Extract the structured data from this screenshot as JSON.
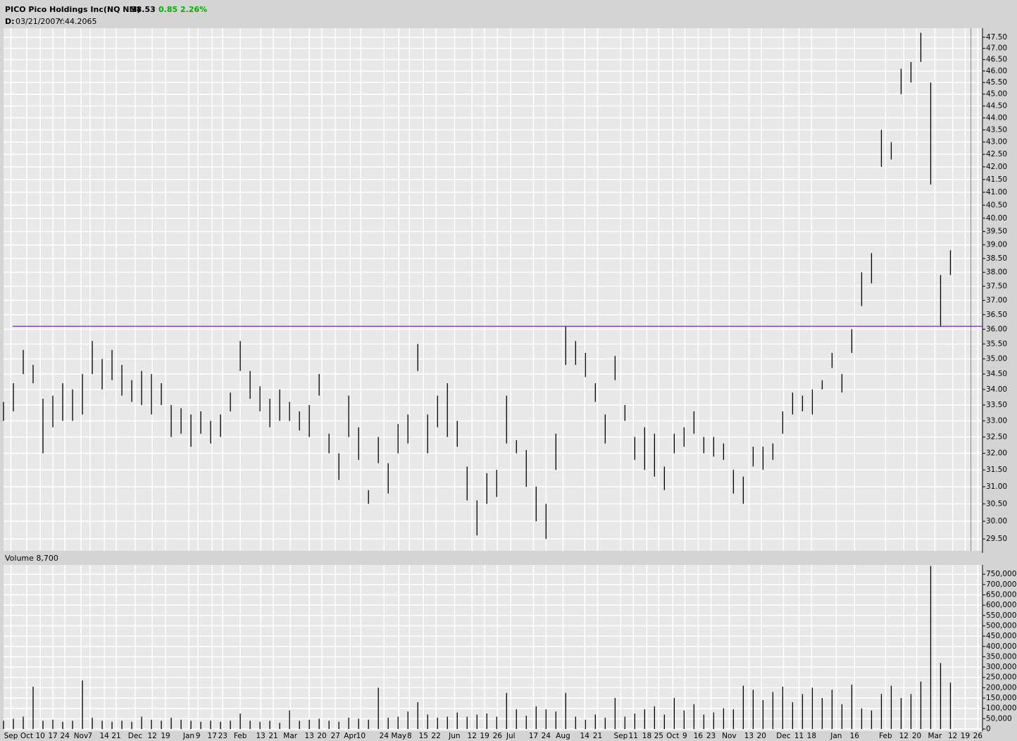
{
  "header": {
    "symbol": "PICO Pico Holdings Inc(NQ NM)",
    "last": "38.53",
    "change": "0.85",
    "change_pct": "2.26%",
    "d_label": "D:",
    "date": "03/21/2007",
    "y_readout": "Y:44.2065"
  },
  "chart_data": [
    {
      "type": "ohlc",
      "color": "#000000",
      "log": true,
      "grid": true,
      "x": [
        0,
        4,
        8,
        12,
        16,
        20,
        24,
        28,
        32,
        36,
        40,
        44,
        48,
        52,
        56,
        60,
        64,
        68,
        72,
        76,
        80,
        84,
        88,
        92,
        96,
        100,
        104,
        108,
        112,
        116,
        120,
        124,
        128,
        132,
        136,
        140,
        144,
        148,
        152,
        156,
        160,
        164,
        168,
        172,
        176,
        180,
        184,
        188,
        192,
        196,
        200,
        204,
        208,
        212,
        216,
        220,
        224,
        228,
        232,
        236,
        240,
        244,
        248,
        252,
        256,
        260,
        264,
        268,
        272,
        276,
        280,
        284,
        288,
        292,
        296,
        300,
        304,
        308,
        312,
        316,
        320,
        324,
        328,
        332,
        336,
        340,
        344,
        348,
        352,
        356,
        360,
        364,
        368,
        372,
        376,
        380,
        384
      ],
      "high": [
        33.6,
        34.2,
        35.3,
        34.8,
        33.7,
        33.8,
        34.2,
        34.0,
        34.5,
        35.6,
        35.0,
        35.3,
        34.8,
        34.3,
        34.6,
        34.5,
        34.2,
        33.5,
        33.4,
        33.2,
        33.3,
        33.0,
        33.2,
        33.9,
        35.6,
        34.6,
        34.1,
        33.7,
        34.0,
        33.6,
        33.3,
        33.5,
        34.5,
        32.6,
        32.0,
        33.8,
        32.8,
        30.9,
        32.5,
        31.7,
        32.9,
        33.2,
        35.5,
        33.2,
        33.8,
        34.2,
        33.0,
        31.6,
        30.6,
        31.4,
        31.5,
        33.8,
        32.4,
        32.1,
        31.0,
        30.5,
        32.6,
        36.1,
        35.6,
        35.2,
        34.2,
        33.2,
        35.1,
        33.5,
        32.5,
        32.8,
        32.6,
        31.6,
        32.6,
        32.8,
        33.3,
        32.5,
        32.5,
        32.3,
        31.5,
        31.3,
        32.2,
        32.2,
        32.3,
        33.3,
        33.9,
        33.8,
        34.0,
        34.3,
        35.2,
        34.5,
        36.0,
        38.0,
        38.7,
        43.5,
        43.0,
        46.1,
        46.4,
        47.7,
        45.5,
        37.9,
        38.8
      ],
      "low": [
        33.0,
        33.3,
        34.5,
        34.2,
        32.0,
        32.8,
        33.0,
        33.0,
        33.2,
        34.5,
        34.0,
        34.3,
        33.8,
        33.6,
        33.5,
        33.2,
        33.5,
        32.5,
        32.6,
        32.2,
        32.6,
        32.3,
        32.5,
        33.3,
        34.6,
        33.7,
        33.3,
        32.8,
        33.0,
        33.0,
        32.7,
        32.5,
        33.8,
        32.0,
        31.2,
        32.5,
        31.8,
        30.5,
        31.7,
        30.8,
        32.0,
        32.3,
        34.6,
        32.0,
        32.8,
        32.5,
        32.2,
        30.6,
        29.6,
        30.5,
        30.7,
        32.3,
        32.0,
        31.0,
        30.0,
        29.5,
        31.5,
        34.8,
        34.8,
        34.4,
        33.6,
        32.3,
        34.3,
        33.0,
        31.8,
        31.5,
        31.3,
        30.9,
        32.0,
        32.2,
        32.6,
        32.0,
        31.9,
        31.8,
        30.8,
        30.5,
        31.6,
        31.5,
        31.8,
        32.6,
        33.2,
        33.3,
        33.2,
        34.0,
        34.7,
        33.9,
        35.2,
        36.8,
        37.6,
        42.0,
        42.3,
        45.0,
        45.5,
        46.4,
        41.3,
        36.1,
        37.9
      ],
      "xlim": [
        0,
        397
      ],
      "ylim": [
        29.17,
        47.91
      ],
      "yticks": [
        {
          "value": 29.5,
          "label": "29.50"
        },
        {
          "value": 30,
          "label": "30.00"
        },
        {
          "value": 30.5,
          "label": "30.50"
        },
        {
          "value": 31,
          "label": "31.00"
        },
        {
          "value": 31.5,
          "label": "31.50"
        },
        {
          "value": 32,
          "label": "32.00"
        },
        {
          "value": 32.5,
          "label": "32.50"
        },
        {
          "value": 33,
          "label": "33.00"
        },
        {
          "value": 33.5,
          "label": "33.50"
        },
        {
          "value": 34,
          "label": "34.00"
        },
        {
          "value": 34.5,
          "label": "34.50"
        },
        {
          "value": 35,
          "label": "35.00"
        },
        {
          "value": 35.5,
          "label": "35.50"
        },
        {
          "value": 36,
          "label": "36.00"
        },
        {
          "value": 36.5,
          "label": "36.50"
        },
        {
          "value": 37,
          "label": "37.00"
        },
        {
          "value": 37.5,
          "label": "37.50"
        },
        {
          "value": 38,
          "label": "38.00"
        },
        {
          "value": 38.5,
          "label": "38.50"
        },
        {
          "value": 39,
          "label": "39.00"
        },
        {
          "value": 39.5,
          "label": "39.50"
        },
        {
          "value": 40,
          "label": "40.00"
        },
        {
          "value": 40.5,
          "label": "40.50"
        },
        {
          "value": 41,
          "label": "41.00"
        },
        {
          "value": 41.5,
          "label": "41.50"
        },
        {
          "value": 42,
          "label": "42.00"
        },
        {
          "value": 42.5,
          "label": "42.50"
        },
        {
          "value": 43,
          "label": "43.00"
        },
        {
          "value": 43.5,
          "label": "43.50"
        },
        {
          "value": 44,
          "label": "44.00"
        },
        {
          "value": 44.5,
          "label": "44.50"
        },
        {
          "value": 45,
          "label": "45.00"
        },
        {
          "value": 45.5,
          "label": "45.50"
        },
        {
          "value": 46,
          "label": "46.00"
        },
        {
          "value": 46.5,
          "label": "46.50"
        },
        {
          "value": 47,
          "label": "47.00"
        },
        {
          "value": 47.5,
          "label": "47.50"
        }
      ],
      "hline": 36.1,
      "hline_color": "#7030a0",
      "vline": 392.3
    },
    {
      "type": "bar",
      "title": "Volume 8,700",
      "color": "#000000",
      "grid": true,
      "x": [
        0,
        4,
        8,
        12,
        16,
        20,
        24,
        28,
        32,
        36,
        40,
        44,
        48,
        52,
        56,
        60,
        64,
        68,
        72,
        76,
        80,
        84,
        88,
        92,
        96,
        100,
        104,
        108,
        112,
        116,
        120,
        124,
        128,
        132,
        136,
        140,
        144,
        148,
        152,
        156,
        160,
        164,
        168,
        172,
        176,
        180,
        184,
        188,
        192,
        196,
        200,
        204,
        208,
        212,
        216,
        220,
        224,
        228,
        232,
        236,
        240,
        244,
        248,
        252,
        256,
        260,
        264,
        268,
        272,
        276,
        280,
        284,
        288,
        292,
        296,
        300,
        304,
        308,
        312,
        316,
        320,
        324,
        328,
        332,
        336,
        340,
        344,
        348,
        352,
        356,
        360,
        364,
        368,
        372,
        376,
        380,
        384
      ],
      "values": [
        40000,
        50000,
        60000,
        205000,
        40000,
        45000,
        35000,
        40000,
        235000,
        55000,
        40000,
        35000,
        40000,
        35000,
        60000,
        45000,
        40000,
        55000,
        45000,
        40000,
        35000,
        40000,
        35000,
        40000,
        75000,
        40000,
        35000,
        40000,
        30000,
        90000,
        40000,
        45000,
        50000,
        40000,
        35000,
        55000,
        50000,
        45000,
        200000,
        55000,
        60000,
        85000,
        130000,
        70000,
        55000,
        60000,
        80000,
        60000,
        70000,
        75000,
        60000,
        175000,
        95000,
        65000,
        110000,
        95000,
        85000,
        175000,
        60000,
        45000,
        70000,
        55000,
        150000,
        60000,
        75000,
        95000,
        110000,
        70000,
        150000,
        90000,
        120000,
        70000,
        80000,
        100000,
        95000,
        210000,
        190000,
        140000,
        180000,
        205000,
        130000,
        170000,
        200000,
        150000,
        190000,
        120000,
        215000,
        100000,
        90000,
        170000,
        210000,
        150000,
        170000,
        230000,
        790000,
        320000,
        225000
      ],
      "xlim": [
        0,
        397
      ],
      "ylim": [
        0,
        795000
      ],
      "yticks": [
        0,
        {
          "value": 50000,
          "label": "50,000"
        },
        {
          "value": 100000,
          "label": "100,000"
        },
        {
          "value": 150000,
          "label": "150,000"
        },
        {
          "value": 200000,
          "label": "200,000"
        },
        {
          "value": 250000,
          "label": "250,000"
        },
        {
          "value": 300000,
          "label": "300,000"
        },
        {
          "value": 350000,
          "label": "350,000"
        },
        {
          "value": 400000,
          "label": "400,000"
        },
        {
          "value": 450000,
          "label": "450,000"
        },
        {
          "value": 500000,
          "label": "500,000"
        },
        {
          "value": 550000,
          "label": "550,000"
        },
        {
          "value": 600000,
          "label": "600,000"
        },
        {
          "value": 650000,
          "label": "650,000"
        },
        {
          "value": 700000,
          "label": "700,000"
        },
        {
          "value": 750000,
          "label": "750,000"
        }
      ],
      "xticks": [
        {
          "value": 3,
          "label": "Sep"
        },
        {
          "value": 9.4,
          "label": "Oct"
        },
        {
          "value": 14.9,
          "label": "10"
        },
        {
          "value": 20,
          "label": "17"
        },
        {
          "value": 24.9,
          "label": "24"
        },
        {
          "value": 31.4,
          "label": "Nov"
        },
        {
          "value": 35.1,
          "label": "7"
        },
        {
          "value": 40.9,
          "label": "14"
        },
        {
          "value": 45.7,
          "label": "21"
        },
        {
          "value": 53.4,
          "label": "Dec"
        },
        {
          "value": 60.3,
          "label": "12"
        },
        {
          "value": 65.7,
          "label": "19"
        },
        {
          "value": 75.1,
          "label": "Jan"
        },
        {
          "value": 78.9,
          "label": "9"
        },
        {
          "value": 84.6,
          "label": "17"
        },
        {
          "value": 88.9,
          "label": "23"
        },
        {
          "value": 96,
          "label": "Feb"
        },
        {
          "value": 104.3,
          "label": "13"
        },
        {
          "value": 109.4,
          "label": "21"
        },
        {
          "value": 116.3,
          "label": "Mar"
        },
        {
          "value": 124,
          "label": "13"
        },
        {
          "value": 129.1,
          "label": "20"
        },
        {
          "value": 134.6,
          "label": "27"
        },
        {
          "value": 140.6,
          "label": "Apr"
        },
        {
          "value": 144.9,
          "label": "10"
        },
        {
          "value": 154.3,
          "label": "24"
        },
        {
          "value": 160.3,
          "label": "May"
        },
        {
          "value": 164.6,
          "label": "8"
        },
        {
          "value": 170.3,
          "label": "15"
        },
        {
          "value": 175.4,
          "label": "22"
        },
        {
          "value": 182.9,
          "label": "Jun"
        },
        {
          "value": 190,
          "label": "12"
        },
        {
          "value": 195.1,
          "label": "19"
        },
        {
          "value": 200.3,
          "label": "26"
        },
        {
          "value": 205.7,
          "label": "Jul"
        },
        {
          "value": 214.9,
          "label": "17"
        },
        {
          "value": 220,
          "label": "24"
        },
        {
          "value": 226.9,
          "label": "Aug"
        },
        {
          "value": 235.7,
          "label": "14"
        },
        {
          "value": 240.9,
          "label": "21"
        },
        {
          "value": 250.3,
          "label": "Sep"
        },
        {
          "value": 255.4,
          "label": "11"
        },
        {
          "value": 260.9,
          "label": "18"
        },
        {
          "value": 265.7,
          "label": "25"
        },
        {
          "value": 271.4,
          "label": "Oct"
        },
        {
          "value": 276.3,
          "label": "9"
        },
        {
          "value": 281.7,
          "label": "16"
        },
        {
          "value": 286.9,
          "label": "23"
        },
        {
          "value": 294.3,
          "label": "Nov"
        },
        {
          "value": 302.3,
          "label": "13"
        },
        {
          "value": 307.4,
          "label": "20"
        },
        {
          "value": 316.3,
          "label": "Dec"
        },
        {
          "value": 322.6,
          "label": "11"
        },
        {
          "value": 327.7,
          "label": "18"
        },
        {
          "value": 337.7,
          "label": "Jan"
        },
        {
          "value": 345.1,
          "label": "16"
        },
        {
          "value": 357.7,
          "label": "Feb"
        },
        {
          "value": 365.1,
          "label": "12"
        },
        {
          "value": 370.3,
          "label": "20"
        },
        {
          "value": 377.7,
          "label": "Mar"
        },
        {
          "value": 384.9,
          "label": "12"
        },
        {
          "value": 390,
          "label": "19"
        },
        {
          "value": 395.1,
          "label": "26"
        }
      ]
    }
  ]
}
